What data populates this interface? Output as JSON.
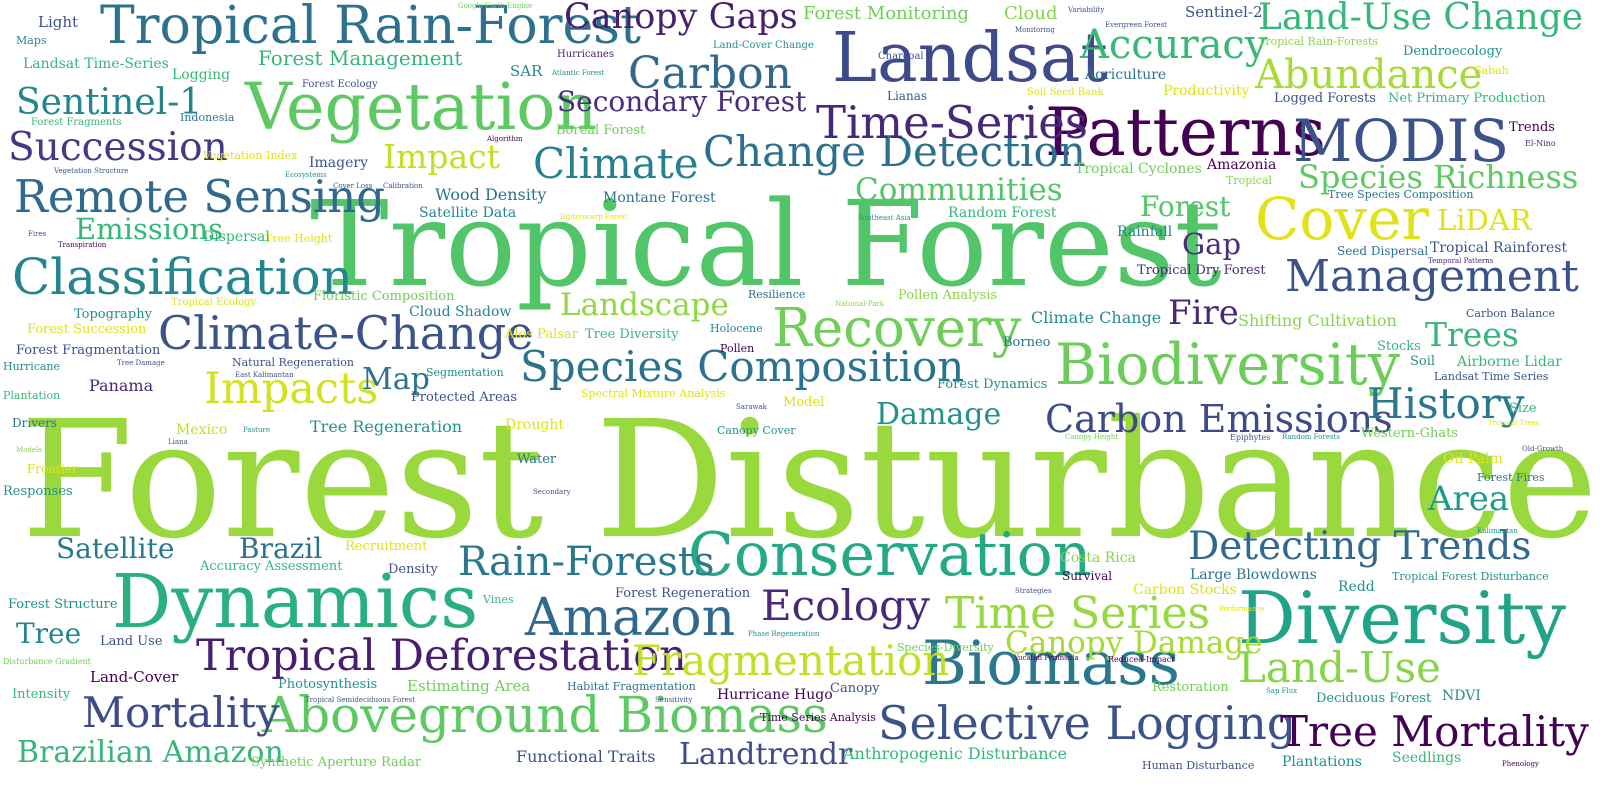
{
  "words": [
    {
      "text": "Forest Disturbance",
      "color": "#9ad93d"
    },
    {
      "text": "Tropical Forest",
      "color": "#52c569"
    },
    {
      "text": "Dynamics",
      "color": "#2ab07f"
    },
    {
      "text": "Diversity",
      "color": "#20a386"
    },
    {
      "text": "Landsat",
      "color": "#3e4a89"
    },
    {
      "text": "Patterns",
      "color": "#440154"
    },
    {
      "text": "Vegetation",
      "color": "#5ec962"
    },
    {
      "text": "Biomass",
      "color": "#2a788e"
    },
    {
      "text": "Cover",
      "color": "#e0e318"
    },
    {
      "text": "Tropical Rain-Forest",
      "color": "#2d718e"
    },
    {
      "text": "Conservation",
      "color": "#23a983"
    },
    {
      "text": "Aboveground Biomass",
      "color": "#5ec962"
    },
    {
      "text": "Classification",
      "color": "#25858e"
    },
    {
      "text": "MODIS",
      "color": "#3b528b"
    },
    {
      "text": "Biodiversity",
      "color": "#6ccd5a"
    },
    {
      "text": "Amazon",
      "color": "#31688e"
    },
    {
      "text": "Recovery",
      "color": "#6ece58"
    },
    {
      "text": "Climate-Change",
      "color": "#3b528b"
    },
    {
      "text": "Tropical Deforestation",
      "color": "#481f70"
    },
    {
      "text": "Selective Logging",
      "color": "#3b528b"
    },
    {
      "text": "Climate",
      "color": "#27808e"
    },
    {
      "text": "Carbon",
      "color": "#31688e"
    },
    {
      "text": "Change Detection",
      "color": "#2d708e"
    },
    {
      "text": "Remote Sensing",
      "color": "#31688e"
    },
    {
      "text": "Species Composition",
      "color": "#2c728e"
    },
    {
      "text": "Fragmentation",
      "color": "#c2df23"
    },
    {
      "text": "Mortality",
      "color": "#3e4a89"
    },
    {
      "text": "Tree Mortality",
      "color": "#440154"
    },
    {
      "text": "Land-Use",
      "color": "#86d549"
    },
    {
      "text": "Time Series",
      "color": "#95d840"
    },
    {
      "text": "Impacts",
      "color": "#d2e21b"
    },
    {
      "text": "Ecology",
      "color": "#482878"
    },
    {
      "text": "Carbon Emissions",
      "color": "#3e4a89"
    },
    {
      "text": "Detecting Trends",
      "color": "#31688e"
    },
    {
      "text": "Rain-Forests",
      "color": "#2a788e"
    },
    {
      "text": "Time-Series",
      "color": "#482878"
    },
    {
      "text": "Management",
      "color": "#3b528b"
    },
    {
      "text": "Accuracy",
      "color": "#37b878"
    },
    {
      "text": "Abundance",
      "color": "#a5db36"
    },
    {
      "text": "Land-Use Change",
      "color": "#35b779"
    },
    {
      "text": "Succession",
      "color": "#443983"
    },
    {
      "text": "Canopy Gaps",
      "color": "#481f70"
    },
    {
      "text": "Sentinel-1",
      "color": "#25858e"
    },
    {
      "text": "Secondary Forest",
      "color": "#472d7b"
    },
    {
      "text": "History",
      "color": "#2a788e"
    },
    {
      "text": "Landtrendr",
      "color": "#3e4a89"
    },
    {
      "text": "Species Richness",
      "color": "#5ec962"
    },
    {
      "text": "Canopy Damage",
      "color": "#a5db36"
    },
    {
      "text": "Landscape",
      "color": "#90d743"
    },
    {
      "text": "Communities",
      "color": "#54c568"
    },
    {
      "text": "Impact",
      "color": "#c2df23"
    },
    {
      "text": "Emissions",
      "color": "#35b779"
    },
    {
      "text": "Brazilian Amazon",
      "color": "#35b779"
    },
    {
      "text": "Trees",
      "color": "#35b779"
    },
    {
      "text": "Area",
      "color": "#1e9b8a"
    },
    {
      "text": "LiDAR",
      "color": "#dde318"
    },
    {
      "text": "Damage",
      "color": "#21918c"
    },
    {
      "text": "Map",
      "color": "#2c728e"
    },
    {
      "text": "Fire",
      "color": "#482878"
    },
    {
      "text": "Satellite",
      "color": "#2a788e"
    },
    {
      "text": "Brazil",
      "color": "#2c728e"
    },
    {
      "text": "Tree",
      "color": "#25858e"
    },
    {
      "text": "Forest",
      "color": "#54c568"
    },
    {
      "text": "Gap",
      "color": "#472d7b"
    },
    {
      "text": "Forest Management",
      "color": "#35b779"
    },
    {
      "text": "Forest Monitoring",
      "color": "#6ece58"
    },
    {
      "text": "Cloud",
      "color": "#86d549"
    },
    {
      "text": "Sentinel-2",
      "color": "#3b528b"
    },
    {
      "text": "Light",
      "color": "#3b528b"
    },
    {
      "text": "Maps",
      "color": "#25858e"
    },
    {
      "text": "Landsat Time-Series",
      "color": "#35b779"
    },
    {
      "text": "Logging",
      "color": "#35b779"
    },
    {
      "text": "Forest Ecology",
      "color": "#3b528b"
    },
    {
      "text": "SAR",
      "color": "#25858e"
    },
    {
      "text": "Hurricanes",
      "color": "#481f70"
    },
    {
      "text": "Charcoal",
      "color": "#3b528b"
    },
    {
      "text": "Agriculture",
      "color": "#2c728e"
    },
    {
      "text": "Lianas",
      "color": "#3b528b"
    },
    {
      "text": "Soil Seed Bank",
      "color": "#dde318"
    },
    {
      "text": "Productivity",
      "color": "#dde318"
    },
    {
      "text": "Logged Forests",
      "color": "#3b528b"
    },
    {
      "text": "Net Primary Production",
      "color": "#35b779"
    },
    {
      "text": "Dendroecology",
      "color": "#21918c"
    },
    {
      "text": "Tropical Rain-Forests",
      "color": "#86d549"
    },
    {
      "text": "Indonesia",
      "color": "#2c728e"
    },
    {
      "text": "Forest Fragments",
      "color": "#35b779"
    },
    {
      "text": "Boreal Forest",
      "color": "#6ece58"
    },
    {
      "text": "Trends",
      "color": "#440154"
    },
    {
      "text": "Vegetation Index",
      "color": "#dde318"
    },
    {
      "text": "Imagery",
      "color": "#3b528b"
    },
    {
      "text": "Tropical Cyclones",
      "color": "#6ece58"
    },
    {
      "text": "Amazonia",
      "color": "#440154"
    },
    {
      "text": "Tropical",
      "color": "#86d549"
    },
    {
      "text": "Wood Density",
      "color": "#2c728e"
    },
    {
      "text": "Montane Forest",
      "color": "#2c728e"
    },
    {
      "text": "Satellite Data",
      "color": "#25858e"
    },
    {
      "text": "Random Forest",
      "color": "#35b779"
    },
    {
      "text": "Rainfall",
      "color": "#25858e"
    },
    {
      "text": "Tree Species Composition",
      "color": "#2c728e"
    },
    {
      "text": "Tropical Rainforest",
      "color": "#3b528b"
    },
    {
      "text": "Seed Dispersal",
      "color": "#2c728e"
    },
    {
      "text": "Tropical Dry Forest",
      "color": "#482878"
    },
    {
      "text": "Dispersal",
      "color": "#35b779"
    },
    {
      "text": "Tree Height",
      "color": "#dde318"
    },
    {
      "text": "Floristic Composition",
      "color": "#6ece58"
    },
    {
      "text": "Cloud Shadow",
      "color": "#25858e"
    },
    {
      "text": "Pollen Analysis",
      "color": "#86d549"
    },
    {
      "text": "Resilience",
      "color": "#2c728e"
    },
    {
      "text": "Topography",
      "color": "#21918c"
    },
    {
      "text": "Forest Succession",
      "color": "#dde318"
    },
    {
      "text": "Forest Fragmentation",
      "color": "#3b528b"
    },
    {
      "text": "Tropical Ecology",
      "color": "#dde318"
    },
    {
      "text": "Tree Diversity",
      "color": "#35b779"
    },
    {
      "text": "Holocene",
      "color": "#25858e"
    },
    {
      "text": "Pollen",
      "color": "#440154"
    },
    {
      "text": "Alos Palsar",
      "color": "#dde318"
    },
    {
      "text": "Climate Change",
      "color": "#21918c"
    },
    {
      "text": "Borneo",
      "color": "#2c728e"
    },
    {
      "text": "Shifting Cultivation",
      "color": "#86d549"
    },
    {
      "text": "Stocks",
      "color": "#35b779"
    },
    {
      "text": "Soil",
      "color": "#21918c"
    },
    {
      "text": "Airborne Lidar",
      "color": "#35b779"
    },
    {
      "text": "Landsat Time Series",
      "color": "#3b528b"
    },
    {
      "text": "Carbon Balance",
      "color": "#3b528b"
    },
    {
      "text": "Natural Regeneration",
      "color": "#3b528b"
    },
    {
      "text": "Segmentation",
      "color": "#21918c"
    },
    {
      "text": "Protected Areas",
      "color": "#3b528b"
    },
    {
      "text": "Panama",
      "color": "#482878"
    },
    {
      "text": "Hurricane",
      "color": "#21918c"
    },
    {
      "text": "Plantation",
      "color": "#35b779"
    },
    {
      "text": "Forest Dynamics",
      "color": "#21918c"
    },
    {
      "text": "Model",
      "color": "#dde318"
    },
    {
      "text": "Size",
      "color": "#35b779"
    },
    {
      "text": "Western-Ghats",
      "color": "#6ece58"
    },
    {
      "text": "Drivers",
      "color": "#2c728e"
    },
    {
      "text": "Mexico",
      "color": "#c2df23"
    },
    {
      "text": "Tree Regeneration",
      "color": "#21918c"
    },
    {
      "text": "Drought",
      "color": "#dde318"
    },
    {
      "text": "Canopy Cover",
      "color": "#21918c"
    },
    {
      "text": "Water",
      "color": "#2c728e"
    },
    {
      "text": "Oil Palm",
      "color": "#dde318"
    },
    {
      "text": "Forest Fires",
      "color": "#2c728e"
    },
    {
      "text": "Frontier",
      "color": "#dde318"
    },
    {
      "text": "Responses",
      "color": "#21918c"
    },
    {
      "text": "Recruitment",
      "color": "#dde318"
    },
    {
      "text": "Accuracy Assessment",
      "color": "#35b779"
    },
    {
      "text": "Density",
      "color": "#3b528b"
    },
    {
      "text": "Costa Rica",
      "color": "#86d549"
    },
    {
      "text": "Survival",
      "color": "#440154"
    },
    {
      "text": "Large Blowdowns",
      "color": "#2c728e"
    },
    {
      "text": "Carbon Stocks",
      "color": "#dde318"
    },
    {
      "text": "Redd",
      "color": "#21918c"
    },
    {
      "text": "Tropical Forest Disturbance",
      "color": "#21918c"
    },
    {
      "text": "Forest Structure",
      "color": "#21918c"
    },
    {
      "text": "Vines",
      "color": "#35b779"
    },
    {
      "text": "Forest Regeneration",
      "color": "#3b528b"
    },
    {
      "text": "Land Use",
      "color": "#3b528b"
    },
    {
      "text": "Land-Cover",
      "color": "#440154"
    },
    {
      "text": "Photosynthesis",
      "color": "#21918c"
    },
    {
      "text": "Estimating Area",
      "color": "#6ece58"
    },
    {
      "text": "Habitat Fragmentation",
      "color": "#2c728e"
    },
    {
      "text": "Hurricane Hugo",
      "color": "#440154"
    },
    {
      "text": "Canopy",
      "color": "#3b528b"
    },
    {
      "text": "Restoration",
      "color": "#6ece58"
    },
    {
      "text": "Deciduous Forest",
      "color": "#21918c"
    },
    {
      "text": "NDVI",
      "color": "#21918c"
    },
    {
      "text": "Intensity",
      "color": "#35b779"
    },
    {
      "text": "Synthetic Aperture Radar",
      "color": "#6ece58"
    },
    {
      "text": "Functional Traits",
      "color": "#3b528b"
    },
    {
      "text": "Time Series Analysis",
      "color": "#440154"
    },
    {
      "text": "Anthropogenic Disturbance",
      "color": "#35b779"
    },
    {
      "text": "Human Disturbance",
      "color": "#3b528b"
    },
    {
      "text": "Plantations",
      "color": "#21918c"
    },
    {
      "text": "Seedlings",
      "color": "#35b779"
    },
    {
      "text": "Google Earth Engine",
      "color": "#6ece58"
    },
    {
      "text": "Land-Cover Change",
      "color": "#21918c"
    },
    {
      "text": "Monitoring",
      "color": "#3b528b"
    },
    {
      "text": "Variability",
      "color": "#3b528b"
    },
    {
      "text": "Evergreen Forest",
      "color": "#3b528b"
    },
    {
      "text": "Atlantic Forest",
      "color": "#21918c"
    },
    {
      "text": "Sabah",
      "color": "#dde318"
    },
    {
      "text": "Algorithm",
      "color": "#440154"
    },
    {
      "text": "El-Nino",
      "color": "#482878"
    },
    {
      "text": "Vegetation Structure",
      "color": "#3b528b"
    },
    {
      "text": "Ecosystems",
      "color": "#21918c"
    },
    {
      "text": "Cover Loss",
      "color": "#3b528b"
    },
    {
      "text": "Calibration",
      "color": "#3b528b"
    },
    {
      "text": "Fires",
      "color": "#3b528b"
    },
    {
      "text": "Transpiration",
      "color": "#440154"
    },
    {
      "text": "Dipterocarp Forest",
      "color": "#dde318"
    },
    {
      "text": "Southeast Asia",
      "color": "#21918c"
    },
    {
      "text": "Temporal Patterns",
      "color": "#482878"
    },
    {
      "text": "National-Park",
      "color": "#86d549"
    },
    {
      "text": "Tree Damage",
      "color": "#3b528b"
    },
    {
      "text": "East Kalimantan",
      "color": "#3b528b"
    },
    {
      "text": "Spectral Mixture Analysis",
      "color": "#dde318"
    },
    {
      "text": "Sarawak",
      "color": "#3b528b"
    },
    {
      "text": "Canopy Height",
      "color": "#6ece58"
    },
    {
      "text": "Epiphytes",
      "color": "#3b528b"
    },
    {
      "text": "Random Forests",
      "color": "#21918c"
    },
    {
      "text": "Tropical Trees",
      "color": "#dde318"
    },
    {
      "text": "Old-Growth",
      "color": "#3b528b"
    },
    {
      "text": "Liana",
      "color": "#3b528b"
    },
    {
      "text": "Pasture",
      "color": "#21918c"
    },
    {
      "text": "Models",
      "color": "#86d549"
    },
    {
      "text": "Secondary",
      "color": "#3b528b"
    },
    {
      "text": "Kalimantan",
      "color": "#21918c"
    },
    {
      "text": "Strategies",
      "color": "#3b528b"
    },
    {
      "text": "Performance",
      "color": "#dde318"
    },
    {
      "text": "Phase Regeneration",
      "color": "#21918c"
    },
    {
      "text": "Species-Diversity",
      "color": "#6ece58"
    },
    {
      "text": "Yucatan Peninsula",
      "color": "#440154"
    },
    {
      "text": "Reduced-Impact",
      "color": "#440154"
    },
    {
      "text": "Disturbance Gradient",
      "color": "#6ece58"
    },
    {
      "text": "Tropical Semideciduous Forest",
      "color": "#3b528b"
    },
    {
      "text": "Sensitivity",
      "color": "#3b528b"
    },
    {
      "text": "Sap Flux",
      "color": "#21918c"
    },
    {
      "text": "Phenology",
      "color": "#440154"
    }
  ]
}
